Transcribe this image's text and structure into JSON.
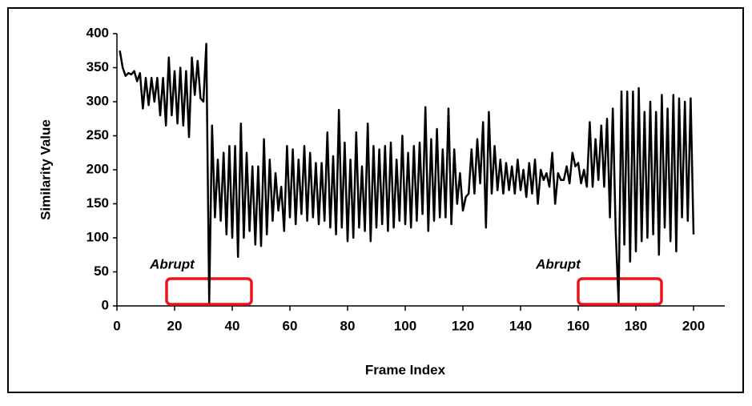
{
  "chart_data": {
    "type": "line",
    "xlabel": "Frame Index",
    "ylabel": "Similarity Value",
    "annotations": [
      "Abrupt",
      "Abrupt"
    ],
    "color": "#000000",
    "xlim": [
      0,
      210
    ],
    "xticks": [
      0,
      20,
      40,
      60,
      80,
      100,
      120,
      140,
      160,
      180,
      200
    ],
    "ylim": [
      0,
      400
    ],
    "yticks": [
      0,
      50,
      100,
      150,
      200,
      250,
      300,
      350,
      400
    ],
    "x": [
      1,
      2,
      3,
      4,
      5,
      6,
      7,
      8,
      9,
      10,
      11,
      12,
      13,
      14,
      15,
      16,
      17,
      18,
      19,
      20,
      21,
      22,
      23,
      24,
      25,
      26,
      27,
      28,
      29,
      30,
      31,
      32,
      33,
      34,
      35,
      36,
      37,
      38,
      39,
      40,
      41,
      42,
      43,
      44,
      45,
      46,
      47,
      48,
      49,
      50,
      51,
      52,
      53,
      54,
      55,
      56,
      57,
      58,
      59,
      60,
      61,
      62,
      63,
      64,
      65,
      66,
      67,
      68,
      69,
      70,
      71,
      72,
      73,
      74,
      75,
      76,
      77,
      78,
      79,
      80,
      81,
      82,
      83,
      84,
      85,
      86,
      87,
      88,
      89,
      90,
      91,
      92,
      93,
      94,
      95,
      96,
      97,
      98,
      99,
      100,
      101,
      102,
      103,
      104,
      105,
      106,
      107,
      108,
      109,
      110,
      111,
      112,
      113,
      114,
      115,
      116,
      117,
      118,
      119,
      120,
      121,
      122,
      123,
      124,
      125,
      126,
      127,
      128,
      129,
      130,
      131,
      132,
      133,
      134,
      135,
      136,
      137,
      138,
      139,
      140,
      141,
      142,
      143,
      144,
      145,
      146,
      147,
      148,
      149,
      150,
      151,
      152,
      153,
      154,
      155,
      156,
      157,
      158,
      159,
      160,
      161,
      162,
      163,
      164,
      165,
      166,
      167,
      168,
      169,
      170,
      171,
      172,
      173,
      174,
      175,
      176,
      177,
      178,
      179,
      180,
      181,
      182,
      183,
      184,
      185,
      186,
      187,
      188,
      189,
      190,
      191,
      192,
      193,
      194,
      195,
      196,
      197,
      198,
      199,
      200
    ],
    "values": [
      375,
      350,
      338,
      342,
      340,
      345,
      330,
      342,
      290,
      335,
      295,
      335,
      300,
      335,
      280,
      335,
      265,
      365,
      280,
      345,
      268,
      350,
      265,
      345,
      248,
      365,
      310,
      360,
      305,
      300,
      385,
      5,
      265,
      130,
      215,
      125,
      225,
      105,
      235,
      100,
      235,
      72,
      268,
      100,
      225,
      110,
      205,
      90,
      205,
      88,
      245,
      105,
      215,
      125,
      195,
      140,
      175,
      110,
      235,
      130,
      230,
      120,
      215,
      135,
      235,
      125,
      225,
      130,
      210,
      120,
      210,
      125,
      255,
      115,
      220,
      105,
      288,
      115,
      240,
      95,
      215,
      100,
      255,
      115,
      205,
      110,
      268,
      95,
      235,
      115,
      230,
      120,
      235,
      110,
      240,
      115,
      215,
      125,
      250,
      120,
      225,
      115,
      235,
      125,
      240,
      135,
      292,
      110,
      245,
      125,
      260,
      130,
      230,
      130,
      290,
      120,
      230,
      150,
      195,
      140,
      160,
      165,
      230,
      165,
      245,
      180,
      270,
      115,
      285,
      165,
      235,
      170,
      215,
      165,
      210,
      170,
      205,
      165,
      215,
      170,
      200,
      160,
      210,
      165,
      215,
      150,
      200,
      185,
      195,
      175,
      225,
      150,
      195,
      185,
      185,
      205,
      180,
      225,
      205,
      210,
      180,
      200,
      175,
      270,
      175,
      245,
      185,
      265,
      175,
      275,
      130,
      290,
      110,
      5,
      315,
      90,
      315,
      65,
      315,
      80,
      320,
      95,
      285,
      100,
      300,
      105,
      285,
      75,
      310,
      115,
      290,
      95,
      310,
      80,
      305,
      130,
      300,
      125,
      305,
      105
    ]
  }
}
